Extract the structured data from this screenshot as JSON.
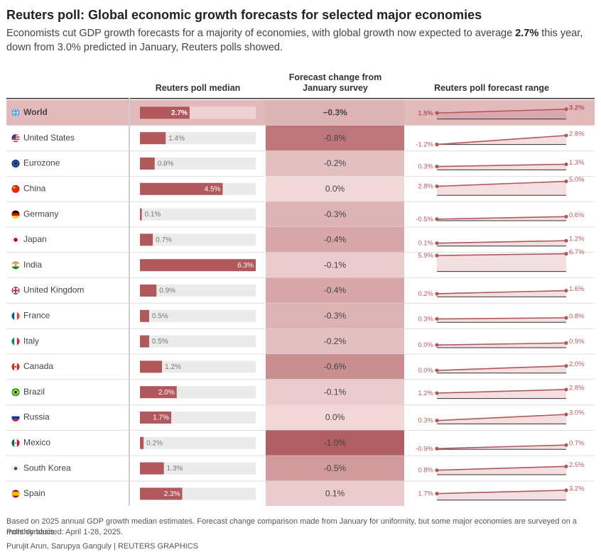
{
  "title": "Reuters poll: Global economic growth forecasts for selected major economies",
  "subtitle": {
    "before": "Economists cut GDP growth forecasts for a majority of economies, with global growth now expected to average ",
    "highlight": "2.7%",
    "after": " this year, down from 3.0% predicted in January, Reuters polls showed."
  },
  "column_headers": {
    "median": "Reuters poll median",
    "change": "Forecast change from January survey",
    "range": "Reuters poll forecast range"
  },
  "chart_data": {
    "type": "table",
    "median_axis_max": 6.3,
    "range_axis": [
      -1.2,
      6.7
    ],
    "rows": [
      {
        "country": "World",
        "flag": "globe",
        "median": 2.7,
        "median_label": "2.7%",
        "change": -0.3,
        "change_label": "−0.3%",
        "low": 1.5,
        "low_label": "1.5%",
        "high": 3.2,
        "high_label": "3.2%",
        "highlight": true
      },
      {
        "country": "United States",
        "flag": "us-flag",
        "median": 1.4,
        "median_label": "1.4%",
        "change": -0.8,
        "change_label": "-0.8%",
        "low": -1.2,
        "low_label": "-1.2%",
        "high": 2.8,
        "high_label": "2.8%"
      },
      {
        "country": "Eurozone",
        "flag": "eu-flag",
        "median": 0.8,
        "median_label": "0.8%",
        "change": -0.2,
        "change_label": "-0.2%",
        "low": 0.3,
        "low_label": "0.3%",
        "high": 1.3,
        "high_label": "1.3%"
      },
      {
        "country": "China",
        "flag": "china-flag",
        "median": 4.5,
        "median_label": "4.5%",
        "change": 0.0,
        "change_label": "0.0%",
        "low": 2.8,
        "low_label": "2.8%",
        "high": 5.0,
        "high_label": "5.0%"
      },
      {
        "country": "Germany",
        "flag": "germany-flag",
        "median": 0.1,
        "median_label": "0.1%",
        "change": -0.3,
        "change_label": "-0.3%",
        "low": -0.5,
        "low_label": "-0.5%",
        "high": 0.6,
        "high_label": "0.6%"
      },
      {
        "country": "Japan",
        "flag": "japan-flag",
        "median": 0.7,
        "median_label": "0.7%",
        "change": -0.4,
        "change_label": "-0.4%",
        "low": 0.1,
        "low_label": "0.1%",
        "high": 1.2,
        "high_label": "1.2%"
      },
      {
        "country": "India",
        "flag": "india-flag",
        "median": 6.3,
        "median_label": "6.3%",
        "change": -0.1,
        "change_label": "-0.1%",
        "low": 5.9,
        "low_label": "5.9%",
        "high": 6.7,
        "high_label": "6.7%"
      },
      {
        "country": "United Kingdom",
        "flag": "uk-flag",
        "median": 0.9,
        "median_label": "0.9%",
        "change": -0.4,
        "change_label": "-0.4%",
        "low": 0.2,
        "low_label": "0.2%",
        "high": 1.6,
        "high_label": "1.6%"
      },
      {
        "country": "France",
        "flag": "france-flag",
        "median": 0.5,
        "median_label": "0.5%",
        "change": -0.3,
        "change_label": "-0.3%",
        "low": 0.3,
        "low_label": "0.3%",
        "high": 0.8,
        "high_label": "0.8%"
      },
      {
        "country": "Italy",
        "flag": "italy-flag",
        "median": 0.5,
        "median_label": "0.5%",
        "change": -0.2,
        "change_label": "-0.2%",
        "low": 0.0,
        "low_label": "0.0%",
        "high": 0.9,
        "high_label": "0.9%"
      },
      {
        "country": "Canada",
        "flag": "canada-flag",
        "median": 1.2,
        "median_label": "1.2%",
        "change": -0.6,
        "change_label": "-0.6%",
        "low": 0.0,
        "low_label": "0.0%",
        "high": 2.0,
        "high_label": "2.0%"
      },
      {
        "country": "Brazil",
        "flag": "brazil-flag",
        "median": 2.0,
        "median_label": "2.0%",
        "change": -0.1,
        "change_label": "-0.1%",
        "low": 1.2,
        "low_label": "1.2%",
        "high": 2.8,
        "high_label": "2.8%"
      },
      {
        "country": "Russia",
        "flag": "russia-flag",
        "median": 1.7,
        "median_label": "1.7%",
        "change": 0.0,
        "change_label": "0.0%",
        "low": 0.3,
        "low_label": "0.3%",
        "high": 3.0,
        "high_label": "3.0%"
      },
      {
        "country": "Mexico",
        "flag": "mexico-flag",
        "median": 0.2,
        "median_label": "0.2%",
        "change": -1.0,
        "change_label": "-1.0%",
        "low": -0.9,
        "low_label": "-0.9%",
        "high": 0.7,
        "high_label": "0.7%"
      },
      {
        "country": "South Korea",
        "flag": "south-korea-flag",
        "median": 1.3,
        "median_label": "1.3%",
        "change": -0.5,
        "change_label": "-0.5%",
        "low": 0.8,
        "low_label": "0.8%",
        "high": 2.5,
        "high_label": "2.5%"
      },
      {
        "country": "Spain",
        "flag": "spain-flag",
        "median": 2.3,
        "median_label": "2.3%",
        "change": 0.1,
        "change_label": "0.1%",
        "low": 1.7,
        "low_label": "1.7%",
        "high": 3.2,
        "high_label": "3.2%"
      }
    ]
  },
  "footer": {
    "note_line1": "Based on 2025 annual GDP growth median estimates. Forecast change comparison made from January for uniformity, but some major economies are surveyed on a monthly basis.",
    "note_line2": "Polls conducted: April 1-28, 2025.",
    "credit": "Purujit Arun, Sarupya Ganguly | REUTERS GRAPHICS"
  },
  "colors": {
    "accent": "#b0585c",
    "bar_track": "#ebebeb",
    "world_row": "#e4b9bc",
    "range_fill": "#f4dfe0",
    "heat_zero": "#f1d7d8",
    "heat_max": "#b05e62"
  }
}
